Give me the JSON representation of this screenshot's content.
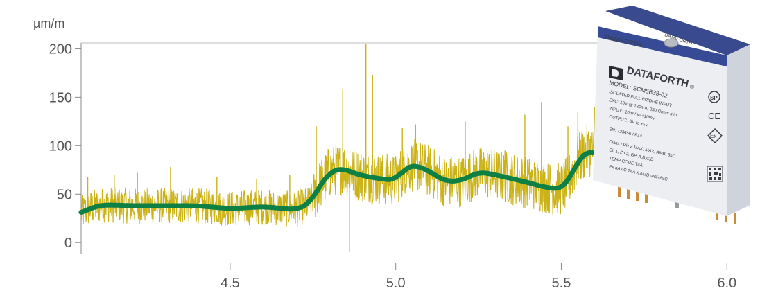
{
  "chart_data": {
    "type": "line",
    "ylabel": "µm/m",
    "xlim": [
      4.05,
      6.1
    ],
    "ylim": [
      -12,
      206
    ],
    "x_ticks": [
      4.5,
      5.0,
      5.5,
      6.0
    ],
    "x_tick_labels": [
      "4.5",
      "5.0",
      "5.5",
      "6.0"
    ],
    "y_ticks": [
      0,
      50,
      100,
      150,
      200
    ],
    "y_tick_labels": [
      "0",
      "50",
      "100",
      "150",
      "200"
    ],
    "x_range_shown": [
      4.05,
      5.62
    ],
    "grid": false,
    "series": [
      {
        "style": "raw",
        "color": "#cbb317",
        "noise_amplitude": 22,
        "spikes": [
          {
            "x": 4.07,
            "y": 68
          },
          {
            "x": 4.15,
            "y": 70
          },
          {
            "x": 4.22,
            "y": 72
          },
          {
            "x": 4.32,
            "y": 78
          },
          {
            "x": 4.46,
            "y": 68
          },
          {
            "x": 4.58,
            "y": 66
          },
          {
            "x": 4.68,
            "y": 70
          },
          {
            "x": 4.76,
            "y": 120
          },
          {
            "x": 4.84,
            "y": 158
          },
          {
            "x": 4.86,
            "y": -10
          },
          {
            "x": 4.91,
            "y": 205
          },
          {
            "x": 4.93,
            "y": 173
          },
          {
            "x": 5.02,
            "y": 118
          },
          {
            "x": 5.06,
            "y": 122
          },
          {
            "x": 5.21,
            "y": 125
          },
          {
            "x": 5.33,
            "y": 95
          },
          {
            "x": 5.39,
            "y": 132
          },
          {
            "x": 5.44,
            "y": 145
          },
          {
            "x": 5.52,
            "y": 120
          },
          {
            "x": 5.55,
            "y": 135
          },
          {
            "x": 5.6,
            "y": 140
          }
        ]
      },
      {
        "style": "smoothed",
        "color": "#0c8045",
        "x": [
          4.05,
          4.08,
          4.12,
          4.2,
          4.3,
          4.4,
          4.5,
          4.6,
          4.7,
          4.74,
          4.77,
          4.8,
          4.84,
          4.87,
          4.9,
          4.95,
          5.0,
          5.03,
          5.06,
          5.1,
          5.15,
          5.2,
          5.25,
          5.3,
          5.35,
          5.4,
          5.45,
          5.5,
          5.52,
          5.55,
          5.58,
          5.6,
          5.62
        ],
        "y": [
          30,
          36,
          39,
          38,
          38,
          38,
          35,
          37,
          34,
          40,
          58,
          73,
          77,
          72,
          69,
          66,
          64,
          78,
          80,
          74,
          63,
          64,
          73,
          70,
          66,
          62,
          57,
          55,
          62,
          85,
          95,
          94,
          88
        ]
      }
    ]
  },
  "module": {
    "brand": "DATAFORTH",
    "banner": "DATAFORTH",
    "model_line": "MODEL: SCM5B38-02",
    "spec_lines": [
      "ISOLATED FULL BRIDGE INPUT",
      "EXC: 10V @ 120mA; 350 Ohms min",
      "INPUT: -10mV to +10mV",
      "OUTPUT: -5V to +5V",
      "SN: 123456 / F14",
      "Class I Div 2 MAX, MAX, AMB. 85C",
      "Cl. 1, Zn 2, GP. A,B,C,D",
      "TEMP CODE T4A",
      "Ex nA IIC T4A X AMB -40/+85C"
    ],
    "trademark": "®",
    "csa_mark": "SP",
    "ce_mark": "CE",
    "ex_mark": "Ex"
  }
}
